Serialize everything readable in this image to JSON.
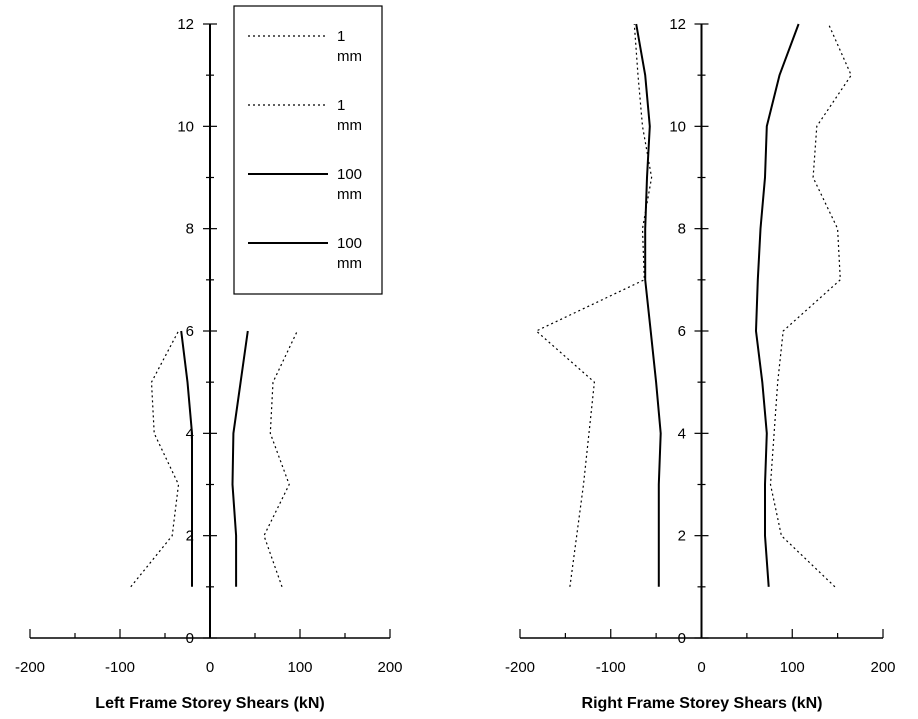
{
  "chart_data": [
    {
      "type": "line",
      "title": "",
      "xlabel": "Left Frame Storey Shears (kN)",
      "ylabel": "",
      "xlim": [
        -200,
        200
      ],
      "ylim": [
        0,
        12
      ],
      "xticks": [
        "-200",
        "-100",
        "0",
        "100",
        "200"
      ],
      "yticks": [
        "0",
        "2",
        "4",
        "6",
        "8",
        "10",
        "12"
      ],
      "grid": false,
      "legend": {
        "placement": "top",
        "entries": [
          {
            "label_line1": "1",
            "label_line2": "mm",
            "style": "dotted"
          },
          {
            "label_line1": "1",
            "label_line2": "mm",
            "style": "dotted"
          },
          {
            "label_line1": "100",
            "label_line2": "mm",
            "style": "solid"
          },
          {
            "label_line1": "100",
            "label_line2": "mm",
            "style": "solid"
          }
        ]
      },
      "series": [
        {
          "style": "dotted",
          "points": [
            [
              -88,
              1
            ],
            [
              -42,
              2
            ],
            [
              -35,
              3
            ],
            [
              -62,
              4
            ],
            [
              -65,
              5
            ],
            [
              -35,
              6
            ]
          ]
        },
        {
          "style": "dotted",
          "points": [
            [
              80,
              1
            ],
            [
              60,
              2
            ],
            [
              88,
              3
            ],
            [
              67,
              4
            ],
            [
              70,
              5
            ],
            [
              97,
              6
            ]
          ]
        },
        {
          "style": "solid",
          "points": [
            [
              -20,
              1
            ],
            [
              -20,
              2
            ],
            [
              -20,
              3
            ],
            [
              -20,
              4
            ],
            [
              -25,
              5
            ],
            [
              -32,
              6
            ]
          ]
        },
        {
          "style": "solid",
          "points": [
            [
              29,
              1
            ],
            [
              29,
              2
            ],
            [
              25,
              3
            ],
            [
              26,
              4
            ],
            [
              34,
              5
            ],
            [
              42,
              6
            ]
          ]
        }
      ]
    },
    {
      "type": "line",
      "title": "",
      "xlabel": "Right Frame Storey Shears (kN)",
      "ylabel": "",
      "xlim": [
        -200,
        200
      ],
      "ylim": [
        0,
        12
      ],
      "xticks": [
        "-200",
        "-100",
        "0",
        "100",
        "200"
      ],
      "yticks": [
        "0",
        "2",
        "4",
        "6",
        "8",
        "10",
        "12"
      ],
      "grid": false,
      "series": [
        {
          "style": "dotted",
          "points": [
            [
              -145,
              1
            ],
            [
              -130,
              3
            ],
            [
              -118,
              5
            ],
            [
              -182,
              6
            ],
            [
              -63,
              7
            ],
            [
              -65,
              8
            ],
            [
              -55,
              9
            ],
            [
              -65,
              10
            ],
            [
              -70,
              11
            ],
            [
              -74,
              12
            ]
          ]
        },
        {
          "style": "dotted",
          "points": [
            [
              147,
              1
            ],
            [
              88,
              2
            ],
            [
              76,
              3
            ],
            [
              80,
              4
            ],
            [
              84,
              5
            ],
            [
              90,
              6
            ],
            [
              153,
              7
            ],
            [
              150,
              8
            ],
            [
              123,
              9
            ],
            [
              127,
              10
            ],
            [
              165,
              11
            ],
            [
              140,
              12
            ]
          ]
        },
        {
          "style": "solid",
          "points": [
            [
              -47,
              1
            ],
            [
              -47,
              2
            ],
            [
              -47,
              3
            ],
            [
              -45,
              4
            ],
            [
              -50,
              5
            ],
            [
              -56,
              6
            ],
            [
              -62,
              7
            ],
            [
              -62,
              8
            ],
            [
              -60,
              9
            ],
            [
              -57,
              10
            ],
            [
              -62,
              11
            ],
            [
              -72,
              12
            ]
          ]
        },
        {
          "style": "solid",
          "points": [
            [
              74,
              1
            ],
            [
              70,
              2
            ],
            [
              70,
              3
            ],
            [
              72,
              4
            ],
            [
              67,
              5
            ],
            [
              60,
              6
            ],
            [
              62,
              7
            ],
            [
              65,
              8
            ],
            [
              70,
              9
            ],
            [
              72,
              10
            ],
            [
              86,
              11
            ],
            [
              107,
              12
            ]
          ]
        }
      ]
    }
  ]
}
